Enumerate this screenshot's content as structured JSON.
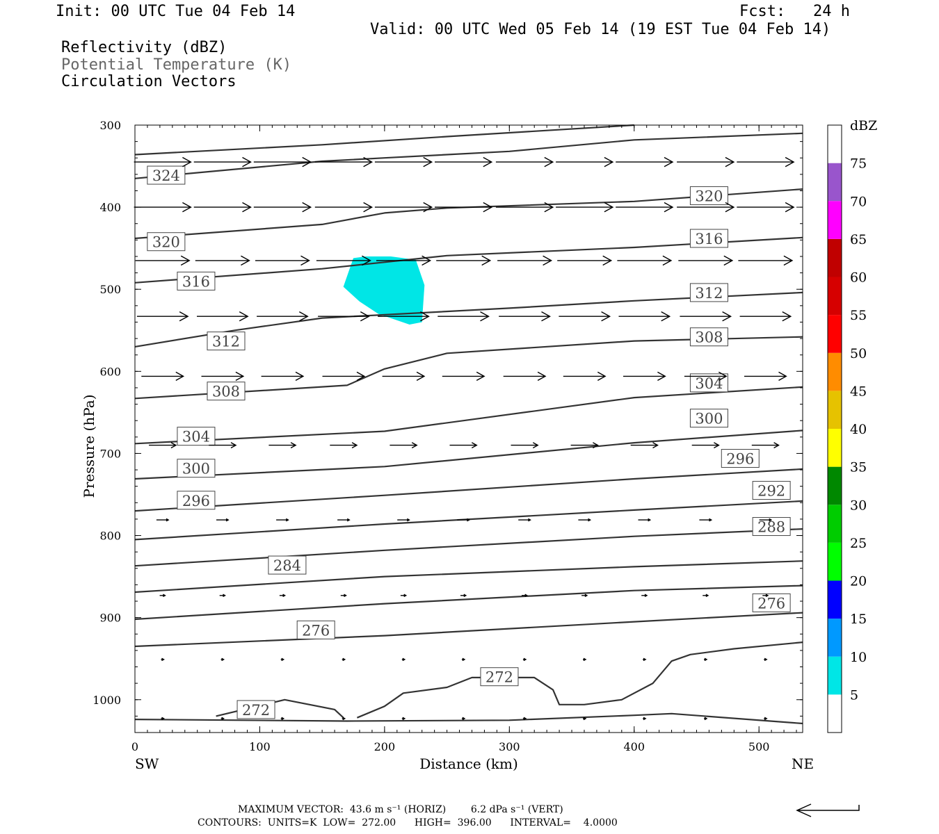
{
  "header": {
    "init": "Init: 00 UTC Tue 04 Feb 14",
    "fcst": "Fcst:   24 h",
    "valid": "Valid: 00 UTC Wed 05 Feb 14 (19 EST Tue 04 Feb 14)",
    "fields": [
      "Reflectivity (dBZ)",
      "Potential Temperature (K)",
      "Circulation Vectors"
    ]
  },
  "chart_data": {
    "type": "cross-section",
    "xlabel": "Distance (km)",
    "ylabel": "Pressure (hPa)",
    "xlim": [
      0,
      535
    ],
    "ylim": [
      300,
      1040
    ],
    "y_scale": "linear-inverted",
    "x_ticks": [
      0,
      100,
      200,
      300,
      400,
      500
    ],
    "y_ticks": [
      300,
      400,
      500,
      600,
      700,
      800,
      900,
      1000
    ],
    "x_end_labels": {
      "left": "SW",
      "right": "NE"
    },
    "theta_contours": [
      {
        "value": 272,
        "segments": [
          [
            [
              0,
              1024
            ],
            [
              170,
              1026
            ],
            [
              300,
              1025
            ],
            [
              400,
              1019
            ],
            [
              430,
              1017
            ],
            [
              535,
              1029
            ]
          ],
          [
            [
              65,
              1020
            ],
            [
              120,
              1000
            ],
            [
              160,
              1012
            ],
            [
              167,
              1022
            ]
          ],
          [
            [
              178,
              1022
            ],
            [
              200,
              1008
            ],
            [
              215,
              992
            ],
            [
              250,
              985
            ],
            [
              270,
              973
            ],
            [
              320,
              973
            ],
            [
              335,
              988
            ],
            [
              340,
              1006
            ],
            [
              360,
              1006
            ],
            [
              390,
              1000
            ],
            [
              415,
              980
            ],
            [
              430,
              953
            ],
            [
              445,
              945
            ],
            [
              480,
              938
            ],
            [
              535,
              930
            ]
          ]
        ],
        "labels": [
          [
            97,
            1012
          ],
          [
            292,
            972
          ]
        ]
      },
      {
        "value": 276,
        "segments": [
          [
            [
              0,
              935
            ],
            [
              200,
              922
            ],
            [
              400,
              905
            ],
            [
              535,
              894
            ]
          ]
        ],
        "labels": [
          [
            145,
            915
          ],
          [
            510,
            882
          ]
        ]
      },
      {
        "value": 280,
        "segments": [
          [
            [
              0,
              902
            ],
            [
              200,
              883
            ],
            [
              400,
              867
            ],
            [
              535,
              861
            ]
          ]
        ],
        "labels": []
      },
      {
        "value": 284,
        "segments": [
          [
            [
              0,
              869
            ],
            [
              200,
              850
            ],
            [
              400,
              838
            ],
            [
              535,
              831
            ]
          ]
        ],
        "labels": [
          [
            122,
            836
          ]
        ]
      },
      {
        "value": 288,
        "segments": [
          [
            [
              0,
              837
            ],
            [
              200,
              818
            ],
            [
              400,
              801
            ],
            [
              535,
              792
            ]
          ]
        ],
        "labels": [
          [
            510,
            789
          ]
        ]
      },
      {
        "value": 292,
        "segments": [
          [
            [
              0,
              805
            ],
            [
              200,
              786
            ],
            [
              400,
              769
            ],
            [
              535,
              758
            ]
          ]
        ],
        "labels": [
          [
            510,
            745
          ]
        ]
      },
      {
        "value": 296,
        "segments": [
          [
            [
              0,
              770
            ],
            [
              200,
              751
            ],
            [
              400,
              731
            ],
            [
              535,
              719
            ]
          ]
        ],
        "labels": [
          [
            49,
            757
          ],
          [
            485,
            706
          ]
        ]
      },
      {
        "value": 300,
        "segments": [
          [
            [
              0,
              731
            ],
            [
              200,
              716
            ],
            [
              400,
              687
            ],
            [
              535,
              672
            ]
          ]
        ],
        "labels": [
          [
            49,
            718
          ],
          [
            460,
            657
          ]
        ]
      },
      {
        "value": 304,
        "segments": [
          [
            [
              0,
              688
            ],
            [
              200,
              673
            ],
            [
              400,
              632
            ],
            [
              535,
              619
            ]
          ]
        ],
        "labels": [
          [
            49,
            679
          ],
          [
            460,
            614
          ]
        ]
      },
      {
        "value": 308,
        "segments": [
          [
            [
              0,
              633
            ],
            [
              170,
              617
            ],
            [
              200,
              597
            ],
            [
              250,
              578
            ],
            [
              400,
              563
            ],
            [
              535,
              558
            ]
          ]
        ],
        "labels": [
          [
            73,
            624
          ],
          [
            460,
            558
          ]
        ]
      },
      {
        "value": 312,
        "segments": [
          [
            [
              0,
              570
            ],
            [
              80,
              550
            ],
            [
              150,
              535
            ],
            [
              300,
              523
            ],
            [
              400,
              514
            ],
            [
              535,
              504
            ]
          ]
        ],
        "labels": [
          [
            73,
            563
          ],
          [
            460,
            504
          ]
        ]
      },
      {
        "value": 316,
        "segments": [
          [
            [
              0,
              492
            ],
            [
              150,
              475
            ],
            [
              250,
              459
            ],
            [
              400,
              449
            ],
            [
              535,
              437
            ]
          ]
        ],
        "labels": [
          [
            49,
            490
          ],
          [
            460,
            438
          ]
        ]
      },
      {
        "value": 320,
        "segments": [
          [
            [
              0,
              438
            ],
            [
              150,
              421
            ],
            [
              200,
              407
            ],
            [
              250,
              401
            ],
            [
              400,
              393
            ],
            [
              535,
              378
            ]
          ]
        ],
        "labels": [
          [
            25,
            442
          ],
          [
            460,
            386
          ]
        ]
      },
      {
        "value": 324,
        "segments": [
          [
            [
              0,
              365
            ],
            [
              150,
              344
            ],
            [
              200,
              340
            ],
            [
              300,
              332
            ],
            [
              400,
              318
            ],
            [
              535,
              310
            ]
          ]
        ],
        "labels": [
          [
            25,
            361
          ]
        ]
      },
      {
        "value": 328,
        "segments": [
          [
            [
              0,
              336
            ],
            [
              150,
              324
            ],
            [
              250,
              314
            ],
            [
              400,
              300
            ]
          ]
        ],
        "labels": []
      }
    ],
    "reflectivity_areas": [
      {
        "dbz": 5,
        "polygon": [
          [
            167,
            497
          ],
          [
            175,
            462
          ],
          [
            185,
            460
          ],
          [
            205,
            460
          ],
          [
            225,
            464
          ],
          [
            232,
            495
          ],
          [
            230,
            540
          ],
          [
            220,
            543
          ],
          [
            195,
            530
          ],
          [
            180,
            515
          ]
        ]
      }
    ],
    "vector_levels": [
      {
        "pressure": 345,
        "length": 0.95
      },
      {
        "pressure": 400,
        "length": 0.95
      },
      {
        "pressure": 465,
        "length": 0.9
      },
      {
        "pressure": 533,
        "length": 0.85
      },
      {
        "pressure": 606,
        "length": 0.7
      },
      {
        "pressure": 690,
        "length": 0.45
      },
      {
        "pressure": 781,
        "length": 0.2
      },
      {
        "pressure": 873,
        "length": 0.09
      },
      {
        "pressure": 951,
        "length": 0.04
      },
      {
        "pressure": 1023,
        "length": 0.04
      }
    ],
    "vector_columns_km": [
      22,
      70,
      118,
      167,
      215,
      263,
      312,
      360,
      408,
      457,
      505
    ],
    "colorbar": {
      "title": "dBZ",
      "labels": [
        "5",
        "10",
        "15",
        "20",
        "25",
        "30",
        "35",
        "40",
        "45",
        "50",
        "55",
        "60",
        "65",
        "70",
        "75"
      ],
      "colors": [
        "#00e6e6",
        "#0099ff",
        "#0000ff",
        "#00ff00",
        "#00cc00",
        "#008800",
        "#ffff00",
        "#e6c200",
        "#ff8c00",
        "#ff0000",
        "#d60000",
        "#c00000",
        "#ff00ff",
        "#9955cc",
        "#ffffff"
      ]
    }
  },
  "footer": {
    "max_vector": "MAXIMUM VECTOR:  43.6 m s⁻¹ (HORIZ)        6.2 dPa s⁻¹ (VERT)",
    "contours": "CONTOURS:  UNITS=K  LOW=  272.00      HIGH=  396.00      INTERVAL=    4.0000"
  }
}
